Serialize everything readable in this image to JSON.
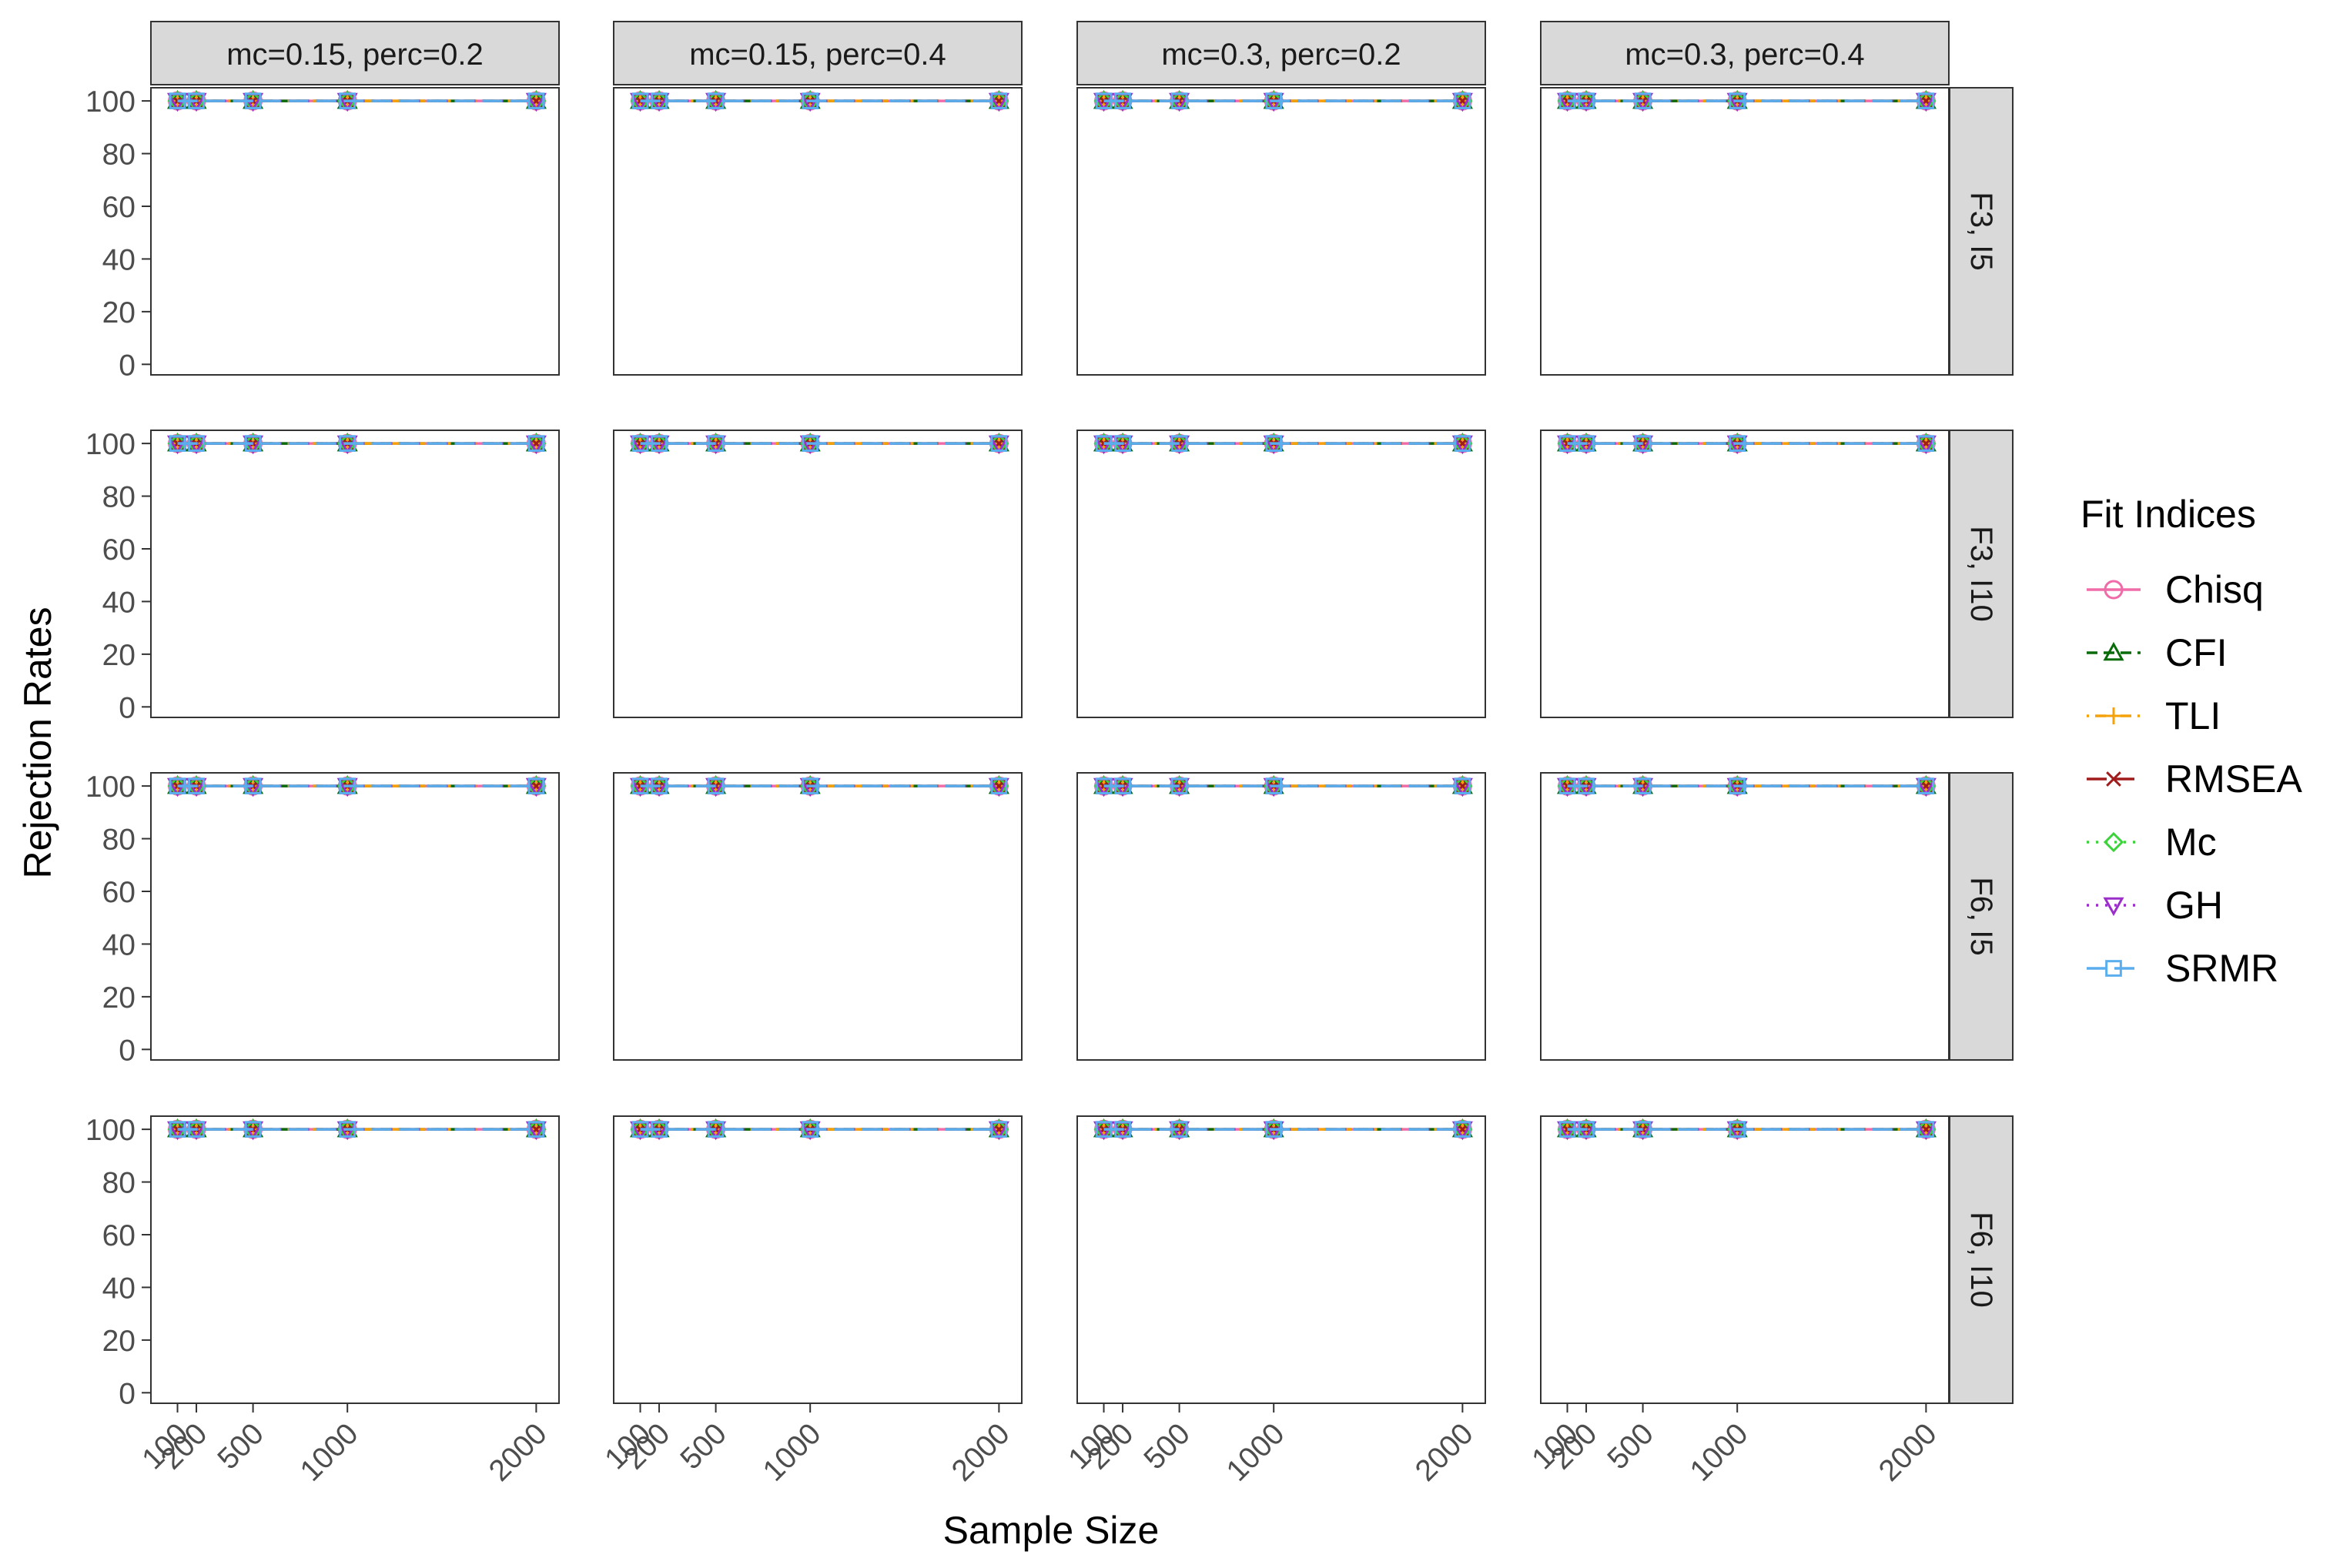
{
  "chart_data": {
    "type": "line",
    "facet_columns": [
      "mc=0.15, perc=0.2",
      "mc=0.15, perc=0.4",
      "mc=0.3, perc=0.2",
      "mc=0.3, perc=0.4"
    ],
    "facet_rows": [
      "F3, I5",
      "F3, I10",
      "F6, I5",
      "F6, I10"
    ],
    "x": [
      100,
      200,
      500,
      1000,
      2000
    ],
    "x_tick_labels": [
      "100",
      "200",
      "500",
      "1000",
      "2000"
    ],
    "xlim": [
      0,
      2080
    ],
    "ylim": [
      -4,
      105
    ],
    "y_ticks": [
      0,
      20,
      40,
      60,
      80,
      100
    ],
    "xlabel": "Sample Size",
    "ylabel": "Rejection Rates",
    "legend_title": "Fit Indices",
    "legend_position": "right",
    "grid": false,
    "series": [
      {
        "name": "Chisq",
        "color": "#f06ca8",
        "marker": "circle",
        "dash": "solid",
        "values": [
          100,
          100,
          100,
          100,
          100
        ]
      },
      {
        "name": "CFI",
        "color": "#0a6b0a",
        "marker": "triangle-up",
        "dash": "dashed",
        "values": [
          100,
          100,
          100,
          100,
          100
        ]
      },
      {
        "name": "TLI",
        "color": "#f5a20a",
        "marker": "plus",
        "dash": "dotdash",
        "values": [
          100,
          100,
          100,
          100,
          100
        ]
      },
      {
        "name": "RMSEA",
        "color": "#a01c1c",
        "marker": "cross",
        "dash": "longdash",
        "values": [
          100,
          100,
          100,
          100,
          100
        ]
      },
      {
        "name": "Mc",
        "color": "#3cd23c",
        "marker": "diamond",
        "dash": "dotted",
        "values": [
          100,
          100,
          100,
          100,
          100
        ]
      },
      {
        "name": "GH",
        "color": "#9a2fc9",
        "marker": "triangle-down",
        "dash": "dotted",
        "values": [
          100,
          100,
          100,
          100,
          100
        ]
      },
      {
        "name": "SRMR",
        "color": "#5aaeee",
        "marker": "square",
        "dash": "longdash",
        "values": [
          100,
          100,
          100,
          100,
          100
        ]
      }
    ]
  }
}
